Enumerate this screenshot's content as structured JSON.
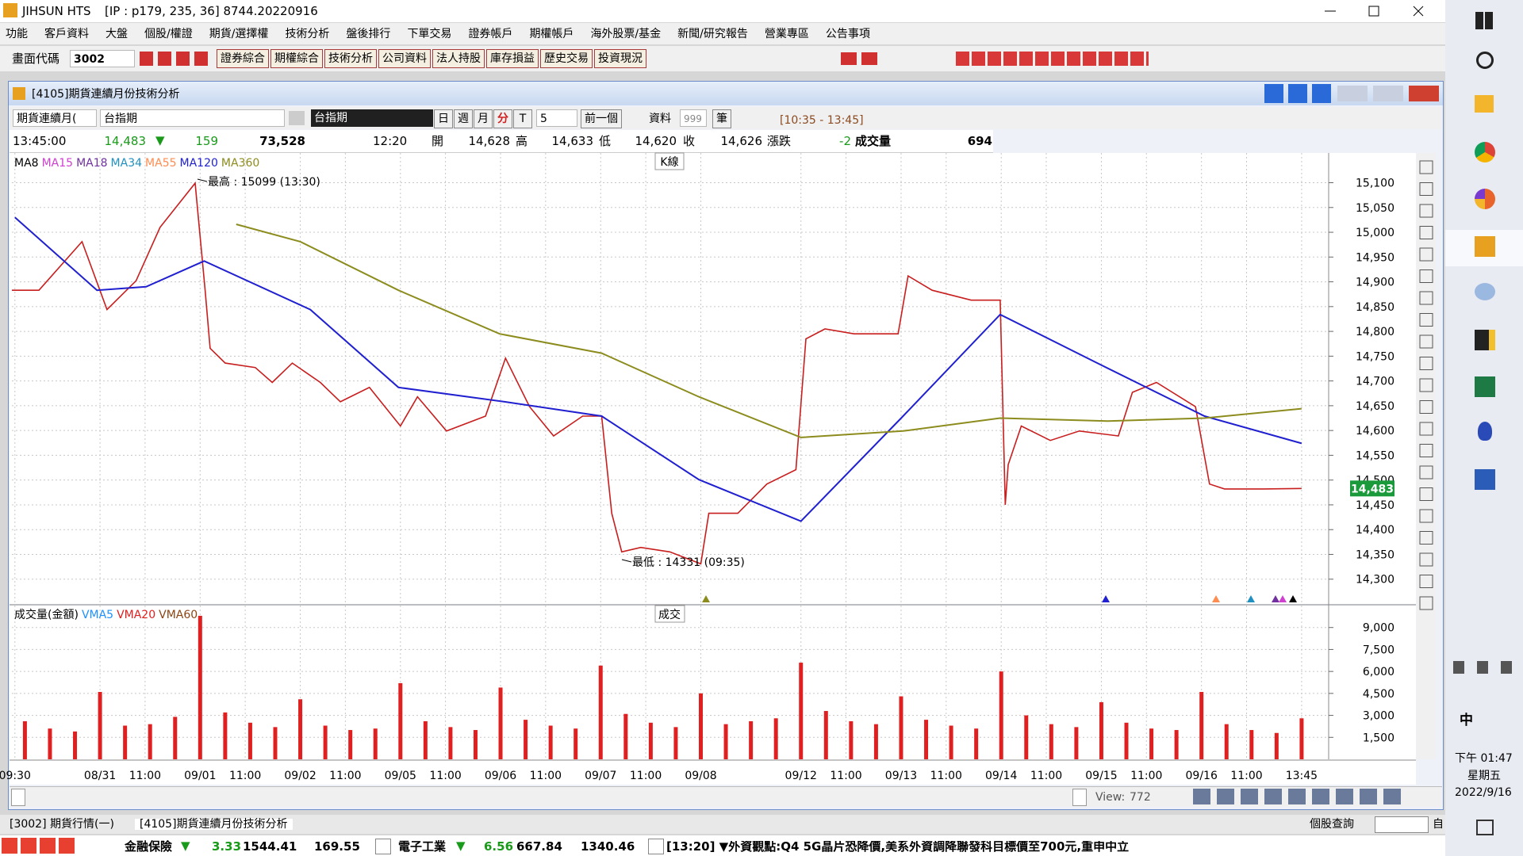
{
  "title_bar": {
    "app": "JIHSUN HTS",
    "info": "[IP : p179, 235, 36] 8744.20220916"
  },
  "menu": [
    "功能",
    "客戶資料",
    "大盤",
    "個股/權證",
    "期貨/選擇權",
    "技術分析",
    "盤後排行",
    "下單交易",
    "證券帳戶",
    "期權帳戶",
    "海外股票/基金",
    "新聞/研究報告",
    "營業專區",
    "公告事項"
  ],
  "toolbar": {
    "code_label": "畫面代碼",
    "code": "3002",
    "buttons": [
      "證券綜合",
      "期權綜合",
      "技術分析",
      "公司資料",
      "法人持股",
      "庫存損益",
      "歷史交易",
      "投資現況"
    ]
  },
  "window": {
    "title": "[4105]期貨連續月份技術分析",
    "controls": {
      "series_select": "期貨連續月(",
      "symbol": "台指期",
      "symbol_name": "台指期",
      "periods": [
        "日",
        "週",
        "月",
        "分",
        "T"
      ],
      "interval": "5",
      "prev": "前一個",
      "data_label": "資料",
      "data_count": "999",
      "data_unit": "筆",
      "range": "[10:35 - 13:45]"
    },
    "quote": {
      "time": "13:45:00",
      "price": "14,483",
      "arrow": "▼",
      "change": "159",
      "volume": "73,528",
      "bar_time": "12:20",
      "open_label": "開",
      "open": "14,628",
      "high_label": "高",
      "high": "14,633",
      "low_label": "低",
      "low": "14,620",
      "close_label": "收",
      "close": "14,626",
      "chg_label": "漲跌",
      "chg": "-2",
      "vol_label": "成交量",
      "vol": "694"
    }
  },
  "chart_data": [
    {
      "type": "line",
      "label": "K線",
      "xlim": [
        0.12,
        13.27
      ],
      "ylim": [
        14250,
        15160
      ],
      "yticks": [
        {
          "value": 15100,
          "label": "15,100"
        },
        {
          "value": 15050,
          "label": "15,050"
        },
        {
          "value": 15000,
          "label": "15,000"
        },
        {
          "value": 14950,
          "label": "14,950"
        },
        {
          "value": 14900,
          "label": "14,900"
        },
        {
          "value": 14850,
          "label": "14,850"
        },
        {
          "value": 14800,
          "label": "14,800"
        },
        {
          "value": 14750,
          "label": "14,750"
        },
        {
          "value": 14700,
          "label": "14,700"
        },
        {
          "value": 14650,
          "label": "14,650"
        },
        {
          "value": 14600,
          "label": "14,600"
        },
        {
          "value": 14550,
          "label": "14,550"
        },
        {
          "value": 14500,
          "label": "14,500"
        },
        {
          "value": 14450,
          "label": "14,450"
        },
        {
          "value": 14400,
          "label": "14,400"
        },
        {
          "value": 14350,
          "label": "14,350"
        },
        {
          "value": 14300,
          "label": "14,300"
        }
      ],
      "grid": true,
      "other_legend": [
        {
          "name": "MA8",
          "color": "#000000"
        },
        {
          "name": "MA15",
          "color": "#d040d0"
        },
        {
          "name": "MA18",
          "color": "#7030a0"
        },
        {
          "name": "MA34",
          "color": "#2090c0"
        },
        {
          "name": "MA55",
          "color": "#ff8c50"
        }
      ],
      "series": [
        {
          "name": "K線",
          "color": "#c81e1e",
          "x": [
            0.12,
            0.39,
            0.82,
            1.07,
            1.36,
            1.6,
            1.95,
            2.05,
            2.1,
            2.25,
            2.55,
            2.72,
            2.92,
            3.2,
            3.4,
            3.69,
            4.0,
            4.17,
            4.46,
            4.85,
            5.05,
            5.29,
            5.53,
            5.82,
            6.01,
            6.11,
            6.21,
            6.4,
            6.69,
            7.0,
            7.08,
            7.37,
            7.66,
            7.95,
            8.05,
            8.24,
            8.53,
            8.97,
            9.07,
            9.31,
            9.7,
            9.99,
            10.04,
            10.07,
            10.2,
            10.49,
            10.78,
            11.17,
            11.31,
            11.55,
            11.94,
            12.08,
            12.23,
            12.62,
            13.0
          ],
          "values": [
            14883,
            14883,
            14981,
            14844,
            14902,
            15010,
            15099,
            14883,
            14766,
            14736,
            14727,
            14697,
            14736,
            14697,
            14658,
            14687,
            14609,
            14668,
            14599,
            14629,
            14746,
            14648,
            14589,
            14629,
            14629,
            14433,
            14355,
            14364,
            14355,
            14331,
            14433,
            14433,
            14492,
            14521,
            14785,
            14805,
            14795,
            14795,
            14912,
            14883,
            14863,
            14863,
            14450,
            14531,
            14609,
            14580,
            14599,
            14589,
            14677,
            14697,
            14648,
            14492,
            14482,
            14482,
            14483
          ]
        },
        {
          "name": "MA120",
          "color": "#2020d0",
          "x": [
            0.15,
            0.97,
            1.46,
            2.04,
            3.1,
            3.98,
            5.04,
            6.01,
            6.98,
            8.0,
            9.02,
            9.99,
            10.96,
            12.03,
            13.0
          ],
          "values": [
            15030,
            14883,
            14890,
            14942,
            14844,
            14687,
            14658,
            14629,
            14501,
            14417,
            14629,
            14834,
            14736,
            14629,
            14574
          ]
        },
        {
          "name": "MA360",
          "color": "#8c8c1e",
          "x": [
            2.36,
            3.0,
            3.98,
            4.99,
            6.01,
            6.98,
            8.0,
            9.02,
            9.99,
            11.06,
            12.03,
            13.0
          ],
          "values": [
            15016,
            14981,
            14883,
            14795,
            14756,
            14668,
            14586,
            14599,
            14625,
            14619,
            14625,
            14644
          ]
        }
      ],
      "annotations": [
        "最高 : 15099 (13:30)",
        "最低 : 14331 (09:35)"
      ],
      "last_label": "14,483"
    },
    {
      "type": "bar",
      "title": "成交量(金額)",
      "label": "成交",
      "xlim": [
        0.12,
        13.27
      ],
      "ylim": [
        0,
        10500
      ],
      "yticks": [
        {
          "value": 9000,
          "label": "9,000"
        },
        {
          "value": 7500,
          "label": "7,500"
        },
        {
          "value": 6000,
          "label": "6,000"
        },
        {
          "value": 4500,
          "label": "4,500"
        },
        {
          "value": 3000,
          "label": "3,000"
        },
        {
          "value": 1500,
          "label": "1,500"
        }
      ],
      "xticks": [
        {
          "value": 0.15,
          "label": "09:30"
        },
        {
          "value": 1,
          "label": "08/31"
        },
        {
          "value": 1.45,
          "label": "11:00"
        },
        {
          "value": 2,
          "label": "09/01"
        },
        {
          "value": 2.45,
          "label": "11:00"
        },
        {
          "value": 3,
          "label": "09/02"
        },
        {
          "value": 3.45,
          "label": "11:00"
        },
        {
          "value": 4,
          "label": "09/05"
        },
        {
          "value": 4.45,
          "label": "11:00"
        },
        {
          "value": 5,
          "label": "09/06"
        },
        {
          "value": 5.45,
          "label": "11:00"
        },
        {
          "value": 6,
          "label": "09/07"
        },
        {
          "value": 6.45,
          "label": "11:00"
        },
        {
          "value": 7,
          "label": "09/08"
        },
        {
          "value": 8,
          "label": "09/12"
        },
        {
          "value": 8.45,
          "label": "11:00"
        },
        {
          "value": 9,
          "label": "09/13"
        },
        {
          "value": 9.45,
          "label": "11:00"
        },
        {
          "value": 10,
          "label": "09/14"
        },
        {
          "value": 10.45,
          "label": "11:00"
        },
        {
          "value": 11,
          "label": "09/15"
        },
        {
          "value": 11.45,
          "label": "11:00"
        },
        {
          "value": 12,
          "label": "09/16"
        },
        {
          "value": 12.45,
          "label": "11:00"
        },
        {
          "value": 13,
          "label": "13:45"
        }
      ],
      "grid": true,
      "legend": [
        {
          "name": "VMA5",
          "color": "#1e90ff"
        },
        {
          "name": "VMA20",
          "color": "#e02020"
        },
        {
          "name": "VMA60",
          "color": "#8b4513"
        }
      ],
      "color": "#e02020",
      "x": [
        0.25,
        0.5,
        0.75,
        1.0,
        1.25,
        1.5,
        1.75,
        2.0,
        2.25,
        2.5,
        2.75,
        3.0,
        3.25,
        3.5,
        3.75,
        4.0,
        4.25,
        4.5,
        4.75,
        5.0,
        5.25,
        5.5,
        5.75,
        6.0,
        6.25,
        6.5,
        6.75,
        7.0,
        7.25,
        7.5,
        7.75,
        8.0,
        8.25,
        8.5,
        8.75,
        9.0,
        9.25,
        9.5,
        9.75,
        10.0,
        10.25,
        10.5,
        10.75,
        11.0,
        11.25,
        11.5,
        11.75,
        12.0,
        12.25,
        12.5,
        12.75,
        13.0
      ],
      "values": [
        2600,
        2100,
        1900,
        4600,
        2300,
        2400,
        2900,
        9800,
        3200,
        2500,
        2200,
        4100,
        2300,
        2000,
        2100,
        5200,
        2600,
        2200,
        2000,
        4900,
        2700,
        2300,
        2100,
        6400,
        3100,
        2500,
        2200,
        4500,
        2400,
        2600,
        2800,
        6600,
        3300,
        2600,
        2400,
        4300,
        2700,
        2300,
        2100,
        6000,
        3000,
        2400,
        2200,
        3900,
        2500,
        2100,
        2000,
        4600,
        2400,
        2000,
        1800,
        2800
      ]
    }
  ],
  "scrollbar": {
    "view_label": "View:",
    "view": "772"
  },
  "tabs": [
    "[3002] 期貨行情(一)",
    "[4105]期貨連續月份技術分析"
  ],
  "query": "個股查詢",
  "query_btn": "自",
  "status": {
    "group1": "金融保險",
    "arrow1": "▼",
    "chg1": "3.33",
    "idx1": "1544.41",
    "amt1": "169.55",
    "group2": "電子工業",
    "arrow2": "▼",
    "chg2": "6.56",
    "idx2": "667.84",
    "amt2": "1340.46",
    "news": "[13:20] ▼外資觀點:Q4 5G晶片恐降價,美系外資調降聯發科目標價至700元,重申中立"
  },
  "taskbar": {
    "ime": "中",
    "time": "下午 01:47",
    "weekday": "星期五",
    "date": "2022/9/16"
  }
}
